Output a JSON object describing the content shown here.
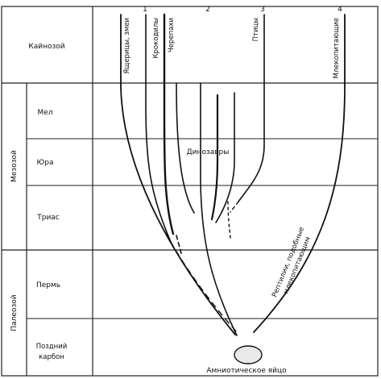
{
  "eras": {
    "cenozoic": "Кайнозой",
    "mesozoic": "Мезозой",
    "paleozoic": "Палеозой"
  },
  "periods": {
    "cretaceous": "Мел",
    "jurassic": "Юра",
    "triassic": "Триас",
    "permian": "Пермь",
    "late_carboniferous_1": "Поздний",
    "late_carboniferous_2": "карбон"
  },
  "column_numbers": [
    "1",
    "2",
    "3",
    "4"
  ],
  "lineages": {
    "lizards_snakes": "Ящерицы, змеи",
    "crocodiles": "Крокодилы",
    "turtles": "Черепахи",
    "birds": "Птицы",
    "mammals": "Млекопитающие",
    "dinosaurs": "Динозавры",
    "mammal_like_1": "Рептилии, подобные",
    "mammal_like_2": "млекопитающим"
  },
  "egg_label": "Амниотическое яйцо"
}
